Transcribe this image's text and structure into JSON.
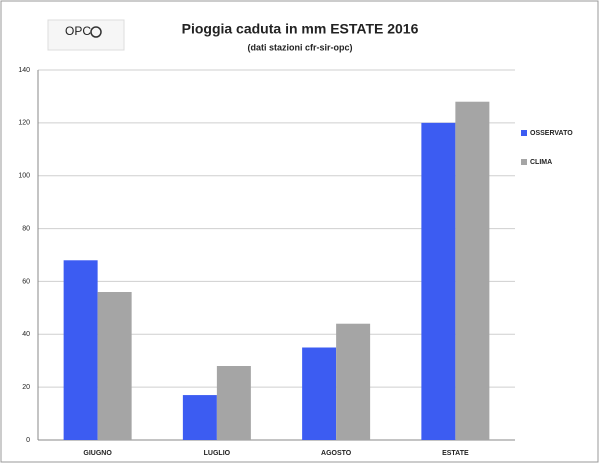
{
  "logo": "OPC",
  "chart_data": {
    "type": "bar",
    "title": "Pioggia caduta in mm ESTATE 2016",
    "subtitle": "(dati stazioni cfr-sir-opc)",
    "categories": [
      "GIUGNO",
      "LUGLIO",
      "AGOSTO",
      "ESTATE"
    ],
    "series": [
      {
        "name": "OSSERVATO",
        "color": "#3c5cf2",
        "values": [
          68,
          17,
          35,
          120
        ]
      },
      {
        "name": "CLIMA",
        "color": "#a5a5a5",
        "values": [
          56,
          28,
          44,
          128
        ]
      }
    ],
    "ylim": [
      0,
      140
    ],
    "yticks": [
      0,
      20,
      40,
      60,
      80,
      100,
      120,
      140
    ],
    "grid": true,
    "legend": "right"
  }
}
